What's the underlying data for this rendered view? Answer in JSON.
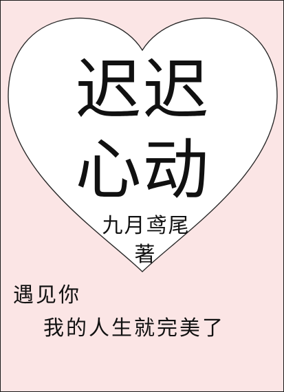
{
  "cover": {
    "title_line_1": "迟迟",
    "title_line_2": "心动",
    "author": "九月鸢尾",
    "author_suffix": "著",
    "tagline_line_1": "遇见你",
    "tagline_line_2": "我的人生就完美了"
  },
  "colors": {
    "background": "#fbe5e5",
    "heart_fill": "#ffffff",
    "heart_stroke": "#2a2a2a",
    "text": "#111111"
  }
}
